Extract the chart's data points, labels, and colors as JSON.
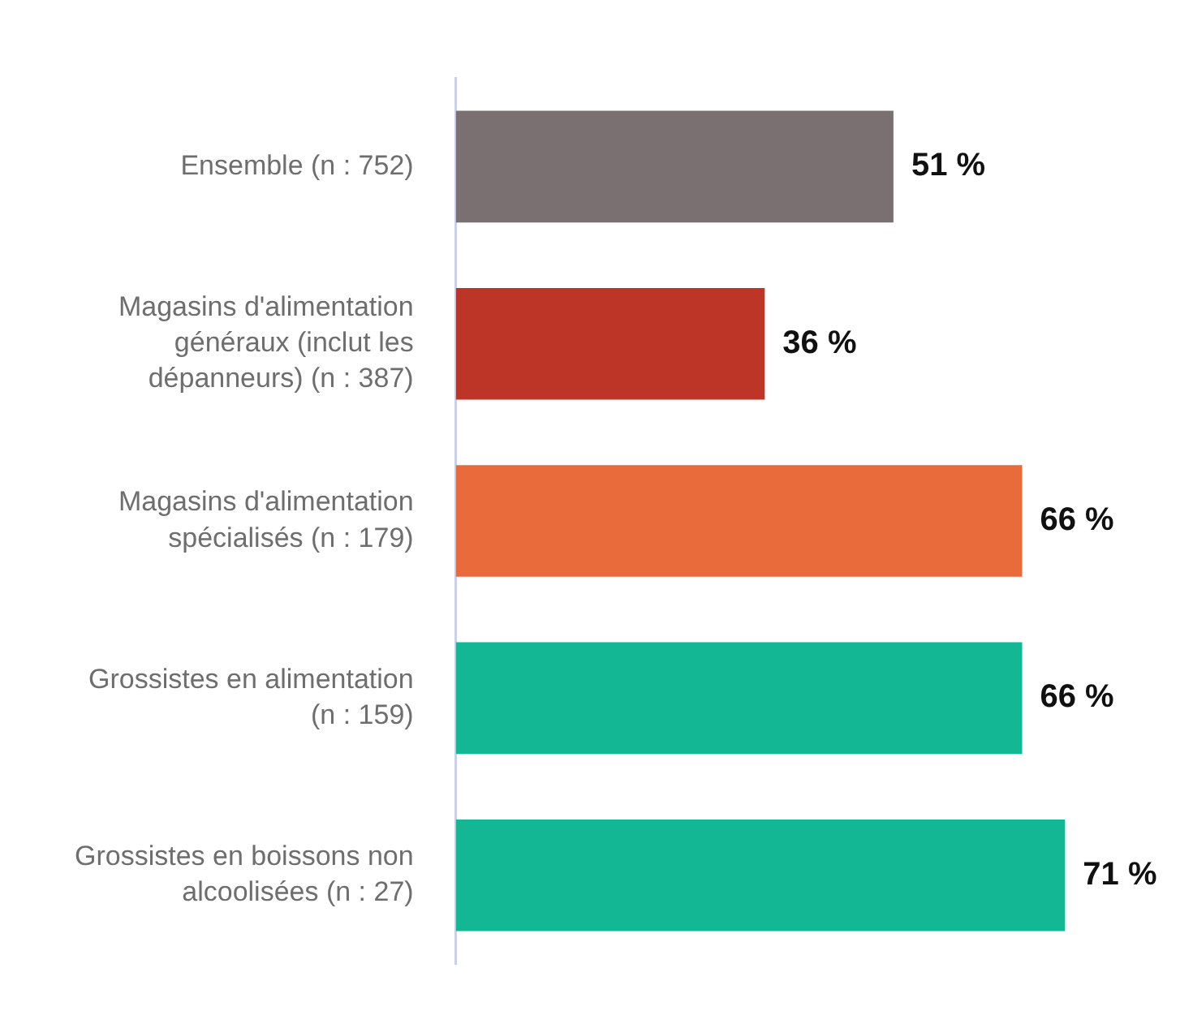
{
  "chart_data": {
    "type": "bar",
    "orientation": "horizontal",
    "legend": false,
    "value_labels": [
      "51 %",
      "36 %",
      "66 %",
      "66 %",
      "71 %"
    ],
    "categories": [
      "Ensemble (n : 752)",
      "Magasins d'alimentation généraux (inclut les dépanneurs) (n : 387)",
      "Magasins d'alimentation spécialisés (n : 179)",
      "Grossistes en alimentation (n : 159)",
      "Grossistes en boissons non alcoolisées (n : 27)"
    ],
    "values": [
      51,
      36,
      66,
      66,
      71
    ],
    "colors": [
      "#7a7072",
      "#bd3526",
      "#e96a3a",
      "#14b793",
      "#14b793"
    ]
  }
}
